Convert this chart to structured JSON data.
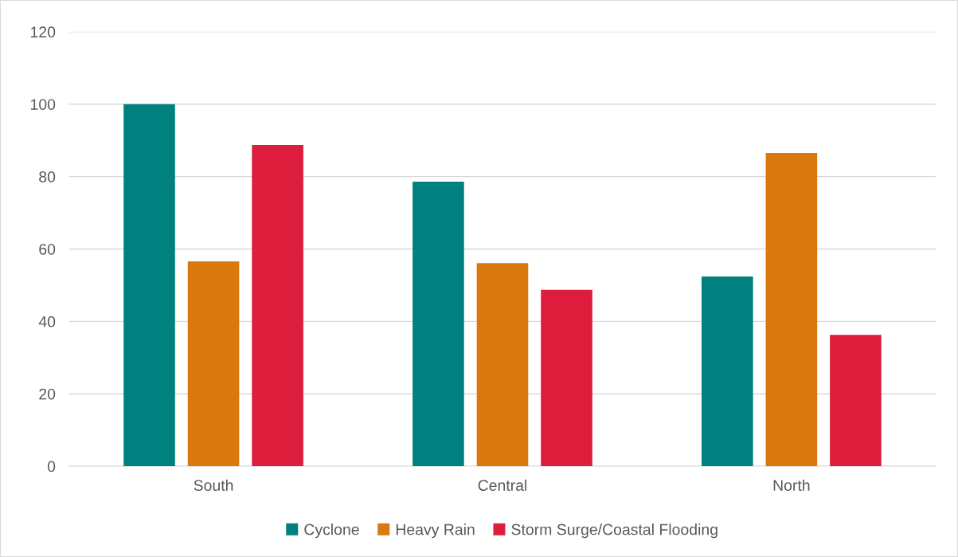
{
  "chart_data": {
    "type": "bar",
    "categories": [
      "South",
      "Central",
      "North"
    ],
    "series": [
      {
        "name": "Cyclone",
        "color": "#00807e",
        "values": [
          100,
          78.6,
          52.4
        ]
      },
      {
        "name": "Heavy Rain",
        "color": "#d9780f",
        "values": [
          56.6,
          56.1,
          86.5
        ]
      },
      {
        "name": "Storm Surge/Coastal Flooding",
        "color": "#dc1e3c",
        "values": [
          88.7,
          48.7,
          36.3
        ]
      }
    ],
    "ylim": [
      0,
      120
    ],
    "yticks": [
      0,
      20,
      40,
      60,
      80,
      100,
      120
    ],
    "grid": "y",
    "legend": "bottom"
  }
}
